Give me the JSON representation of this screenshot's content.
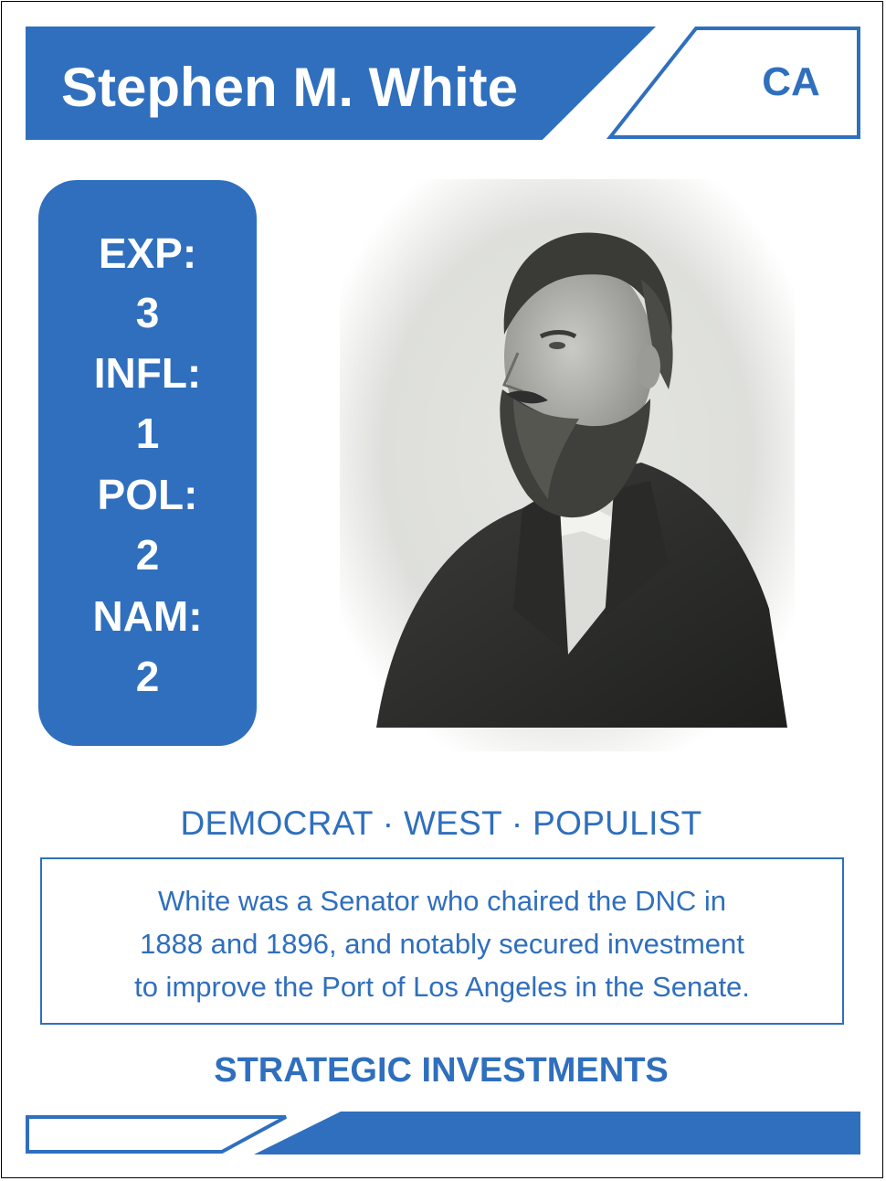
{
  "card": {
    "name": "Stephen M. White",
    "state": "CA",
    "stats": {
      "exp_label": "EXP:",
      "exp_value": "3",
      "infl_label": "INFL:",
      "infl_value": "1",
      "pol_label": "POL:",
      "pol_value": "2",
      "nam_label": "NAM:",
      "nam_value": "2"
    },
    "tags": "DEMOCRAT · WEST · POPULIST",
    "description": {
      "line1": "White was a Senator who chaired the DNC in",
      "line2": "1888 and 1896, and notably secured investment",
      "line3": "to improve the Port of Los Angeles in the Senate."
    },
    "ability": "STRATEGIC INVESTMENTS"
  },
  "colors": {
    "accent": "#2f6fbd",
    "background": "#ffffff",
    "border": "#000000"
  }
}
